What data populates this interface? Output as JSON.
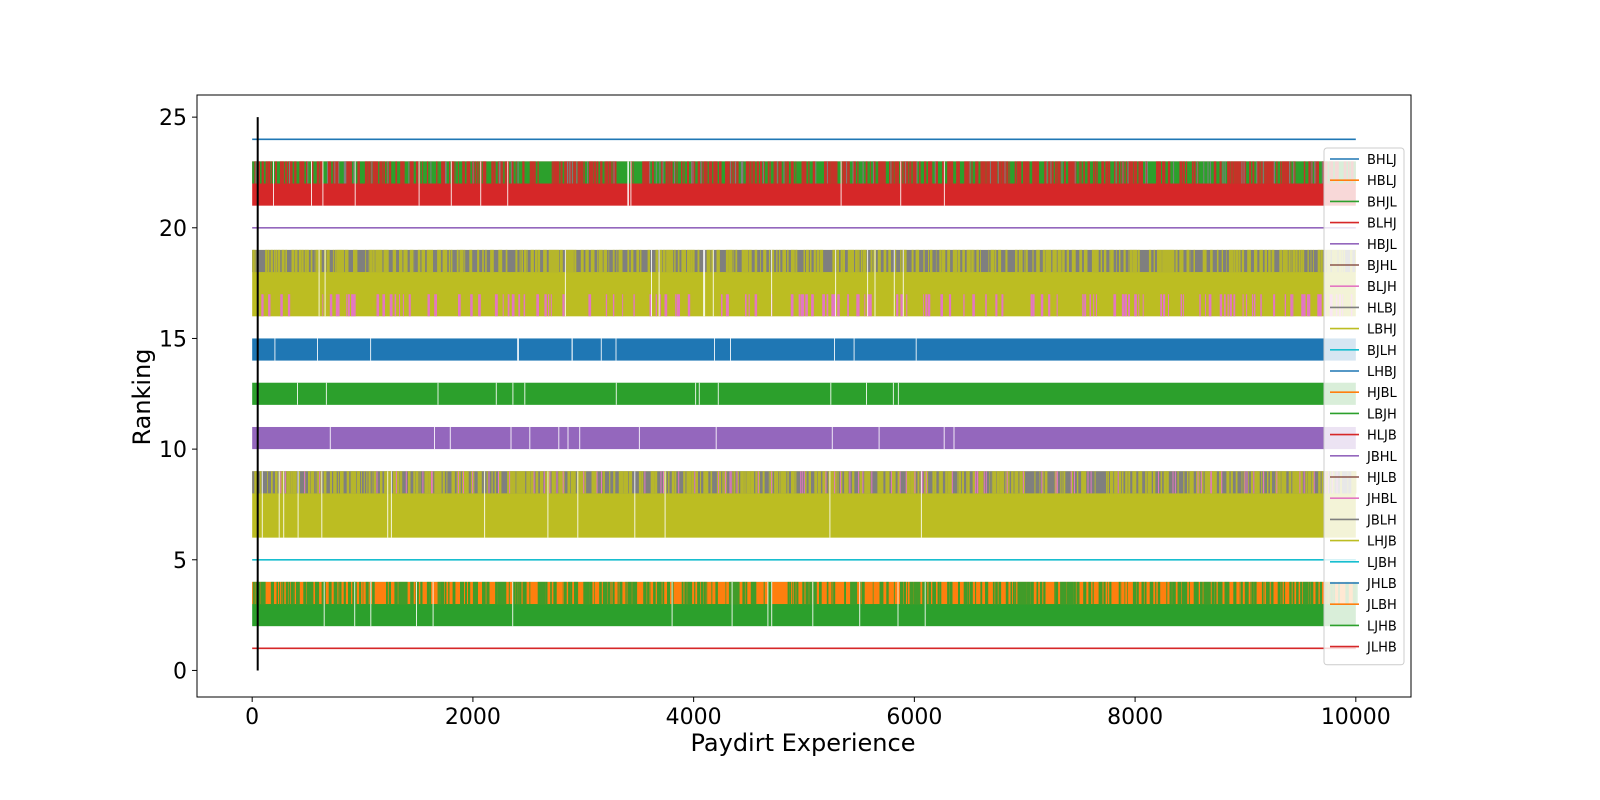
{
  "chart_data": {
    "type": "line",
    "title": "",
    "xlabel": "Paydirt Experience",
    "ylabel": "Ranking",
    "xlim": [
      -500,
      10500
    ],
    "ylim": [
      -1.2,
      26.0
    ],
    "xticks": [
      0,
      2000,
      4000,
      6000,
      8000,
      10000
    ],
    "yticks": [
      0,
      5,
      10,
      15,
      20,
      25
    ],
    "legend_position": "right",
    "marker_line": {
      "x": 50,
      "y_from": 0,
      "y_to": 25,
      "color": "#000000"
    },
    "x_range": [
      0,
      10000
    ],
    "series": [
      {
        "name": "BHLJ",
        "color": "#1f77b4",
        "level": 24
      },
      {
        "name": "HBLJ",
        "color": "#ff7f0e",
        "level": 23
      },
      {
        "name": "BHJL",
        "color": "#2ca02c",
        "level": 22
      },
      {
        "name": "BLHJ",
        "color": "#d62728",
        "level": 21
      },
      {
        "name": "HBJL",
        "color": "#9467bd",
        "level": 20
      },
      {
        "name": "BJHL",
        "color": "#8c564b",
        "level": 19
      },
      {
        "name": "BLJH",
        "color": "#e377c2",
        "level": 18
      },
      {
        "name": "HLBJ",
        "color": "#7f7f7f",
        "level": 17
      },
      {
        "name": "LBHJ",
        "color": "#bcbd22",
        "level": 16
      },
      {
        "name": "BJLH",
        "color": "#17becf",
        "level": 15
      },
      {
        "name": "LHBJ",
        "color": "#1f77b4",
        "level": 14
      },
      {
        "name": "HJBL",
        "color": "#ff7f0e",
        "level": 13
      },
      {
        "name": "LBJH",
        "color": "#2ca02c",
        "level": 12
      },
      {
        "name": "HLJB",
        "color": "#d62728",
        "level": 11
      },
      {
        "name": "JBHL",
        "color": "#9467bd",
        "level": 10
      },
      {
        "name": "HJLB",
        "color": "#8c564b",
        "level": 9
      },
      {
        "name": "JHBL",
        "color": "#e377c2",
        "level": 8
      },
      {
        "name": "JBLH",
        "color": "#7f7f7f",
        "level": 7
      },
      {
        "name": "LHJB",
        "color": "#bcbd22",
        "level": 6
      },
      {
        "name": "LJBH",
        "color": "#17becf",
        "level": 5
      },
      {
        "name": "JHLB",
        "color": "#1f77b4",
        "level": 4
      },
      {
        "name": "JLBH",
        "color": "#ff7f0e",
        "level": 3
      },
      {
        "name": "LJHB",
        "color": "#2ca02c",
        "level": 2
      },
      {
        "name": "JLHB",
        "color": "#d62728",
        "level": 1
      }
    ],
    "bands": [
      {
        "from": 21,
        "to": 23,
        "base_color": "#d62728",
        "upper_from": 22,
        "upper_color": "#2ca02c",
        "alt_color": "#7f7f7f"
      },
      {
        "from": 16,
        "to": 19,
        "base_color": "#bcbd22",
        "upper_from": 18,
        "upper_color": "#7f7f7f",
        "lower_color": "#e377c2"
      },
      {
        "from": 14,
        "to": 15,
        "base_color": "#1f77b4"
      },
      {
        "from": 12,
        "to": 13,
        "base_color": "#2ca02c"
      },
      {
        "from": 10,
        "to": 11,
        "base_color": "#9467bd"
      },
      {
        "from": 6,
        "to": 9,
        "base_color": "#bcbd22",
        "upper_from": 8,
        "upper_color": "#7f7f7f",
        "alt_color": "#e377c2"
      },
      {
        "from": 2,
        "to": 4,
        "base_color": "#2ca02c",
        "upper_from": 3,
        "upper_color": "#ff7f0e"
      }
    ]
  }
}
